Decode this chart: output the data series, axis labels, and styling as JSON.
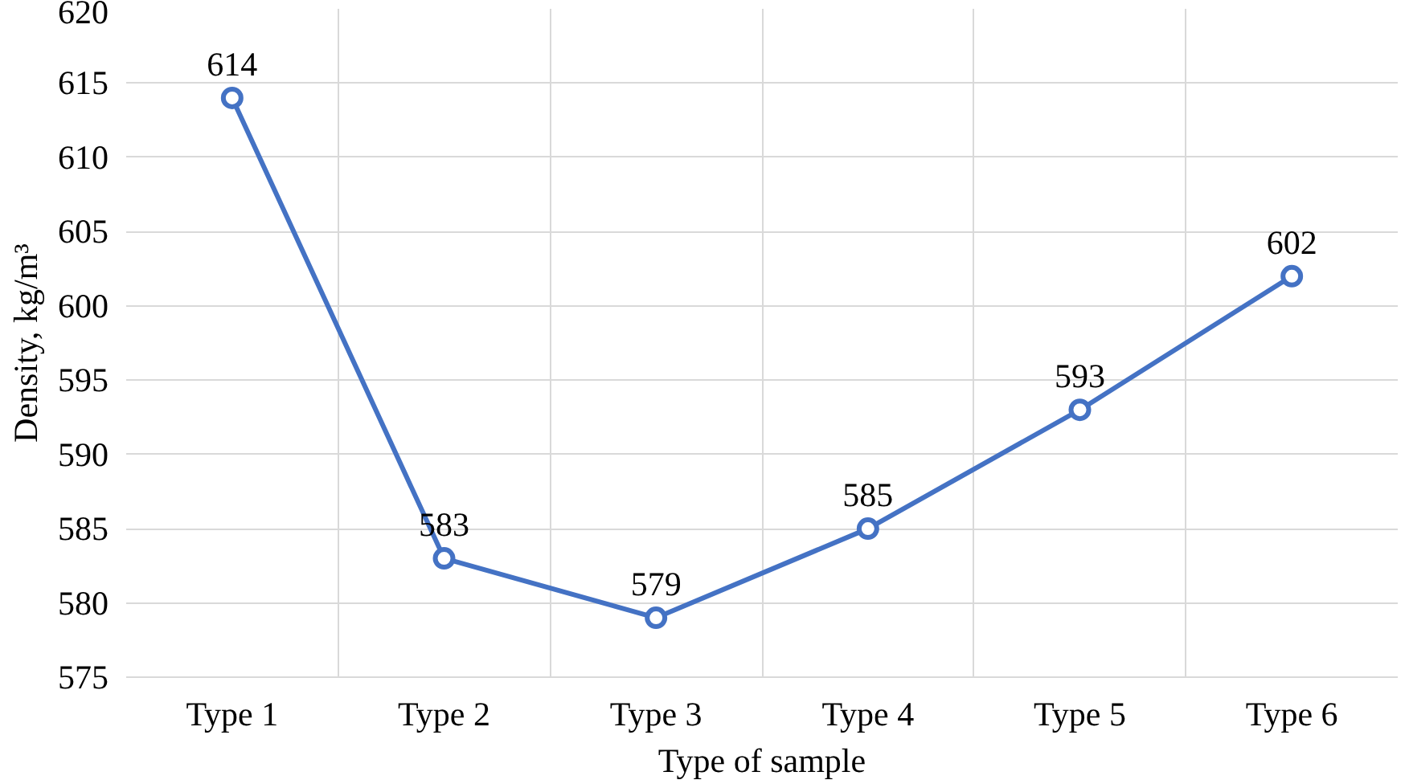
{
  "chart_data": {
    "type": "line",
    "xlabel": "Type of sample",
    "ylabel": "Density, kg/m³",
    "categories": [
      "Type 1",
      "Type 2",
      "Type 3",
      "Type 4",
      "Type 5",
      "Type 6"
    ],
    "series": [
      {
        "color": "#4472c4",
        "values": [
          614,
          583,
          579,
          585,
          593,
          602
        ]
      }
    ],
    "ylim": [
      575,
      620
    ],
    "yticks": [
      575,
      580,
      585,
      590,
      595,
      600,
      605,
      610,
      615,
      620
    ],
    "grid": true,
    "marker": "circle",
    "line_style": "solid",
    "data_labels": true
  }
}
